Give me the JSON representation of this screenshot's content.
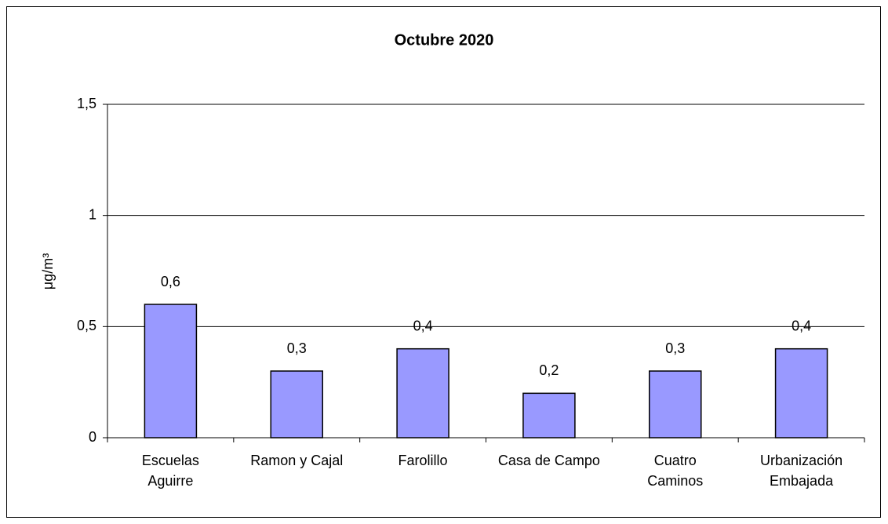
{
  "chart_data": {
    "type": "bar",
    "title": "Octubre 2020",
    "y_label": "μg/m³",
    "categories": [
      "Escuelas\nAguirre",
      "Ramon y Cajal",
      "Farolillo",
      "Casa de Campo",
      "Cuatro\nCaminos",
      "Urbanización\nEmbajada"
    ],
    "values": [
      0.6,
      0.3,
      0.4,
      0.2,
      0.3,
      0.4
    ],
    "value_labels": [
      "0,6",
      "0,3",
      "0,4",
      "0,2",
      "0,3",
      "0,4"
    ],
    "color": "#9999ff",
    "ylim": [
      0,
      1.5
    ],
    "yticks": [
      0,
      {
        "value": 0.5,
        "label": "0,5"
      },
      1,
      {
        "value": 1.5,
        "label": "1,5"
      }
    ],
    "grid": true
  }
}
